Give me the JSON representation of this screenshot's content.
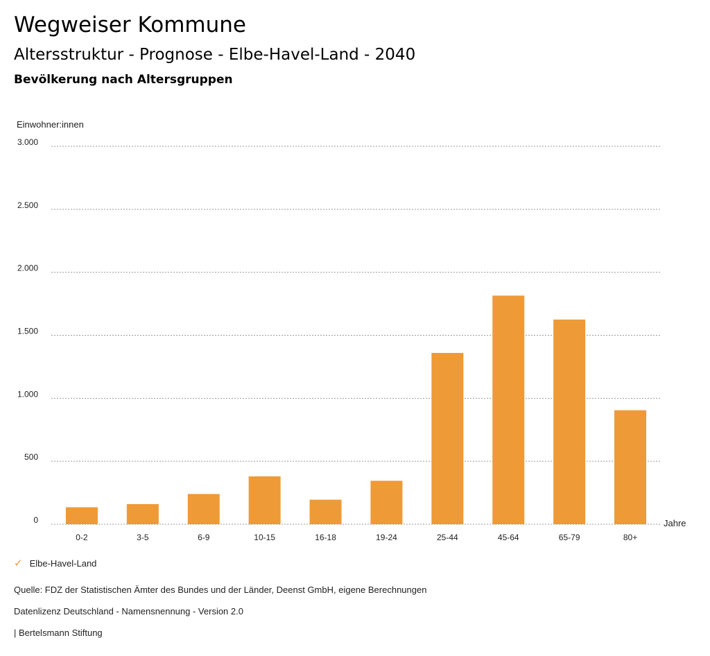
{
  "header": {
    "title": "Wegweiser Kommune",
    "subtitle": "Altersstruktur - Prognose - Elbe-Havel-Land - 2040",
    "subsubtitle": "Bevölkerung nach Altersgruppen"
  },
  "legend": {
    "label": "Elbe-Havel-Land",
    "icon": "check-icon",
    "color": "#ee9a37"
  },
  "footer": {
    "source": "Quelle: FDZ der Statistischen Ämter des Bundes und der Länder, Deenst GmbH, eigene Berechnungen",
    "license": "Datenlizenz Deutschland - Namensnennung - Version 2.0",
    "brand": "| Bertelsmann Stiftung"
  },
  "chart_data": {
    "type": "bar",
    "ylabel": "Einwohner:innen",
    "xlabel": "Jahre",
    "ylim": [
      0,
      3000
    ],
    "yticks": [
      0,
      500,
      1000,
      1500,
      2000,
      2500,
      3000
    ],
    "ytick_labels": [
      "0",
      "500",
      "1.000",
      "1.500",
      "2.000",
      "2.500",
      "3.000"
    ],
    "categories": [
      "0-2",
      "3-5",
      "6-9",
      "10-15",
      "16-18",
      "19-24",
      "25-44",
      "45-64",
      "65-79",
      "80+"
    ],
    "series": [
      {
        "name": "Elbe-Havel-Land",
        "color": "#ee9a37",
        "values": [
          135,
          160,
          240,
          380,
          195,
          345,
          1360,
          1815,
          1625,
          905
        ]
      }
    ]
  }
}
